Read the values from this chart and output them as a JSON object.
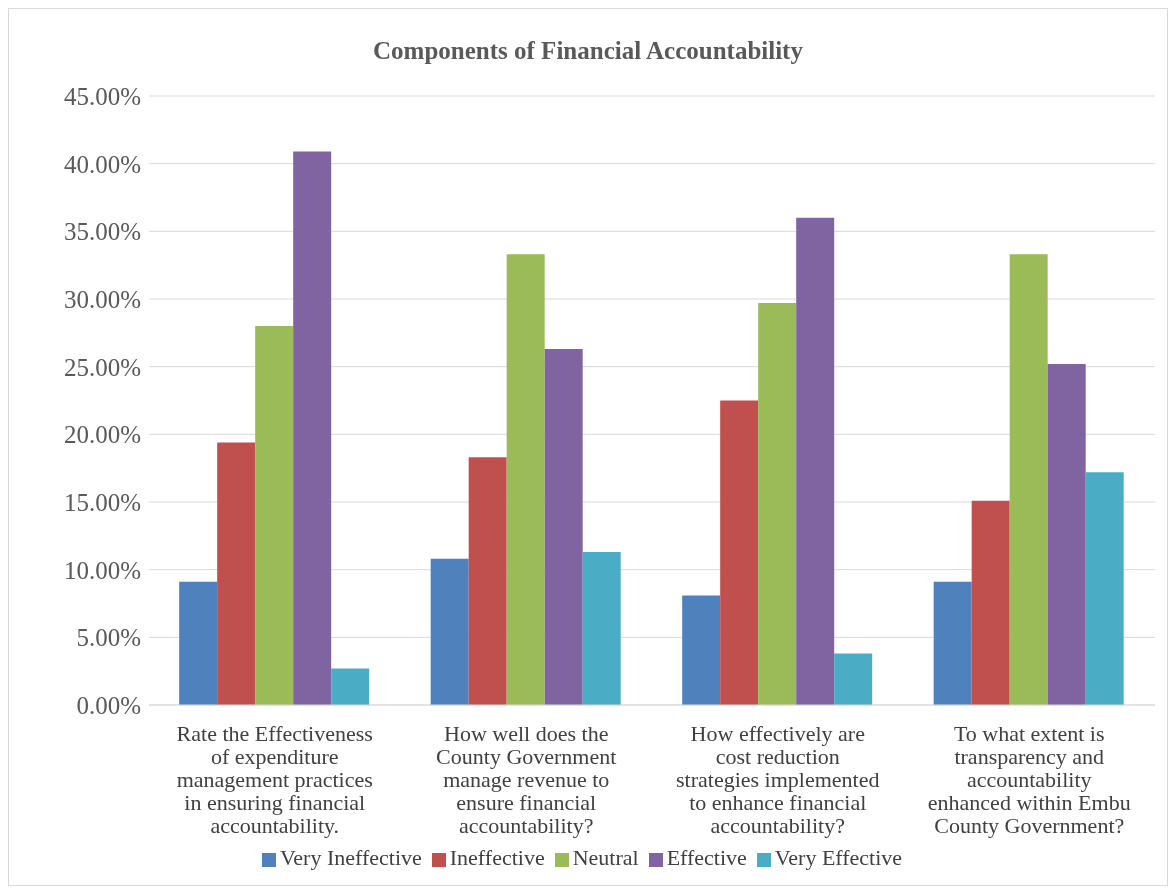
{
  "chart_data": {
    "type": "bar",
    "title": "Components of Financial Accountability",
    "categories": [
      "Rate the Effectiveness of expenditure management practices in ensuring financial accountability.",
      "How well does the County Government manage revenue to ensure financial accountability?",
      "How effectively are cost reduction strategies implemented to enhance financial accountability?",
      "To what extent is transparency and accountability enhanced within Embu County Government?"
    ],
    "series": [
      {
        "name": "Very Ineffective",
        "color": "#4f81bd",
        "values": [
          9.1,
          10.8,
          8.1,
          9.1
        ]
      },
      {
        "name": "Ineffective",
        "color": "#c0504d",
        "values": [
          19.4,
          18.3,
          22.5,
          15.1
        ]
      },
      {
        "name": "Neutral",
        "color": "#9bbb59",
        "values": [
          28.0,
          33.3,
          29.7,
          33.3
        ]
      },
      {
        "name": "Effective",
        "color": "#8064a2",
        "values": [
          40.9,
          26.3,
          36.0,
          25.2
        ]
      },
      {
        "name": "Very Effective",
        "color": "#4bacc6",
        "values": [
          2.7,
          11.3,
          3.8,
          17.2
        ]
      }
    ],
    "ylim": [
      0,
      45
    ],
    "yticks": [
      {
        "value": 0,
        "label": "0.00%"
      },
      {
        "value": 5,
        "label": "5.00%"
      },
      {
        "value": 10,
        "label": "10.00%"
      },
      {
        "value": 15,
        "label": "15.00%"
      },
      {
        "value": 20,
        "label": "20.00%"
      },
      {
        "value": 25,
        "label": "25.00%"
      },
      {
        "value": 30,
        "label": "30.00%"
      },
      {
        "value": 35,
        "label": "35.00%"
      },
      {
        "value": 40,
        "label": "40.00%"
      },
      {
        "value": 45,
        "label": "45.00%"
      }
    ],
    "grid": "y",
    "legend": "bottom"
  }
}
